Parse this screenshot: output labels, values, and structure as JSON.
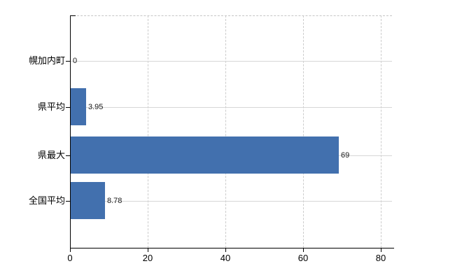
{
  "chart_data": {
    "type": "bar",
    "orientation": "horizontal",
    "categories": [
      "幌加内町",
      "県平均",
      "県最大",
      "全国平均"
    ],
    "values": [
      0,
      3.95,
      69,
      8.78
    ],
    "value_labels": [
      "0",
      "3.95",
      "69",
      "8.78"
    ],
    "x_ticks": [
      0,
      20,
      40,
      60,
      80
    ],
    "xlim": [
      0,
      83
    ],
    "grid": {
      "vertical": "dashed",
      "horizontal": "solid",
      "top_border": "dashed"
    },
    "legend": "none",
    "bar_color": "#4270ae",
    "grid_color": "#d6d6d6",
    "dashed_grid_color": "#cccccc",
    "axis_color": "#000000",
    "label_color": "#000000",
    "background_color": "#ffffff"
  }
}
